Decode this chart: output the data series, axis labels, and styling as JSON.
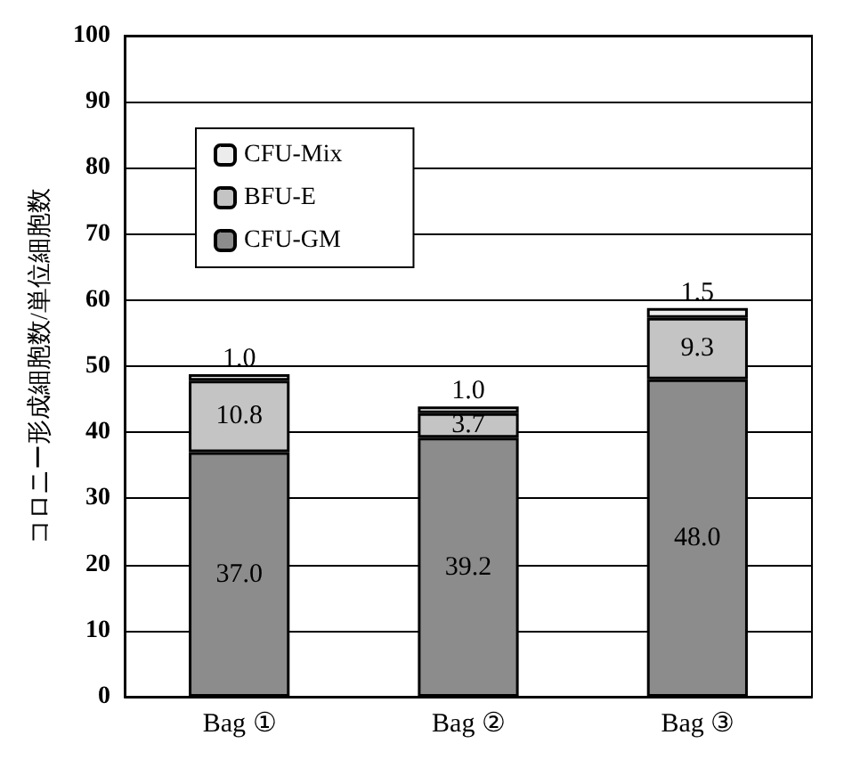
{
  "chart_data": {
    "type": "bar",
    "stacked": true,
    "ylabel": "コロニー形成細胞数/単位細胞数",
    "categories": [
      "Bag ①",
      "Bag ②",
      "Bag ③"
    ],
    "series": [
      {
        "name": "CFU-GM",
        "color": "#8c8c8c",
        "values": [
          37.0,
          39.2,
          48.0
        ],
        "value_labels": [
          "37.0",
          "39.2",
          "48.0"
        ]
      },
      {
        "name": "BFU-E",
        "color": "#c4c4c4",
        "values": [
          10.8,
          3.7,
          9.3
        ],
        "value_labels": [
          "10.8",
          "3.7",
          "9.3"
        ]
      },
      {
        "name": "CFU-Mix",
        "color": "#ececec",
        "values": [
          1.0,
          1.0,
          1.5
        ],
        "value_labels": [
          "1.0",
          "1.0",
          "1.5"
        ]
      }
    ],
    "ylim": [
      0,
      100
    ],
    "yticks": [
      0,
      10,
      20,
      30,
      40,
      50,
      60,
      70,
      80,
      90,
      100
    ],
    "grid": "y",
    "legend": "top left"
  }
}
